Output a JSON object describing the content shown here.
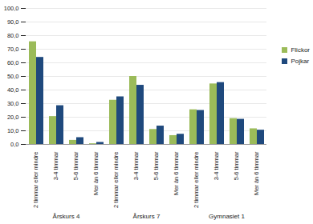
{
  "chart_data": {
    "type": "bar",
    "groups": [
      "Årskurs 4",
      "Årskurs 7",
      "Gymnasiet 1"
    ],
    "categories": [
      "2 timmar eller mindre",
      "3-4 timmar",
      "5-6 timmar",
      "Mer än 6 timmar"
    ],
    "series": [
      {
        "name": "Flickor",
        "color": "#9bbb59",
        "values": [
          [
            75.5,
            20.5,
            3.0,
            0.5
          ],
          [
            32.5,
            50.0,
            11.0,
            6.5
          ],
          [
            25.5,
            44.5,
            19.0,
            11.5
          ]
        ]
      },
      {
        "name": "Pojkar",
        "color": "#1f497d",
        "values": [
          [
            64.0,
            28.5,
            5.0,
            1.5
          ],
          [
            35.0,
            43.5,
            13.5,
            7.5
          ],
          [
            25.0,
            45.5,
            18.5,
            10.5
          ]
        ]
      }
    ],
    "ylim": [
      0,
      100
    ],
    "yticks": [
      {
        "value": 0,
        "label": "0,0"
      },
      {
        "value": 10,
        "label": "10,0"
      },
      {
        "value": 20,
        "label": "20,0"
      },
      {
        "value": 30,
        "label": "30,0"
      },
      {
        "value": 40,
        "label": "40,0"
      },
      {
        "value": 50,
        "label": "50,0"
      },
      {
        "value": 60,
        "label": "60,0"
      },
      {
        "value": 70,
        "label": "70,0"
      },
      {
        "value": 80,
        "label": "80,0"
      },
      {
        "value": 90,
        "label": "90,0"
      },
      {
        "value": 100,
        "label": "100,0"
      }
    ],
    "grid": true,
    "legend": "right"
  }
}
